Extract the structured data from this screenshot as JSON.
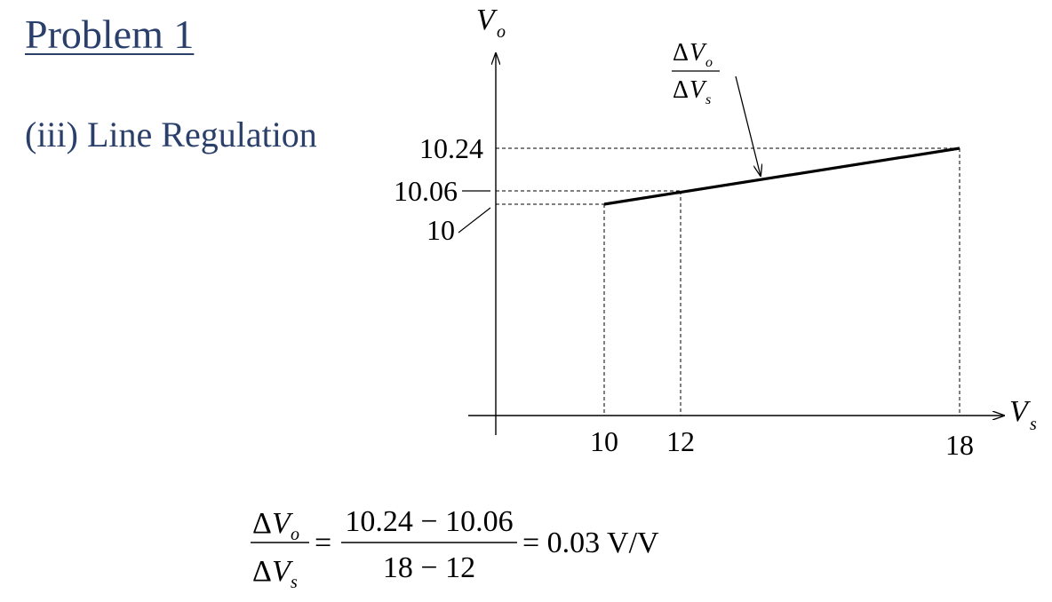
{
  "slide": {
    "title": "Problem 1",
    "subtitle": "(iii) Line Regulation"
  },
  "diagram": {
    "y_axis_label": "V",
    "y_axis_sub": "o",
    "x_axis_label": "V",
    "x_axis_sub": "s",
    "delta": "Δ",
    "y_ticks": [
      "10.24",
      "10.06",
      "10"
    ],
    "x_ticks": [
      "10",
      "12",
      "18"
    ],
    "annotation_num_var": "V",
    "annotation_num_sub": "o",
    "annotation_den_var": "V",
    "annotation_den_sub": "s",
    "points": [
      {
        "vs": 10,
        "vo": 10
      },
      {
        "vs": 12,
        "vo": 10.06
      },
      {
        "vs": 18,
        "vo": 10.24
      }
    ]
  },
  "equation": {
    "lhs_num_var": "V",
    "lhs_num_sub": "o",
    "lhs_den_var": "V",
    "lhs_den_sub": "s",
    "equals": "=",
    "mid_num": "10.24 − 10.06",
    "mid_den": "18 − 12",
    "result": "= 0.03 V/V"
  }
}
